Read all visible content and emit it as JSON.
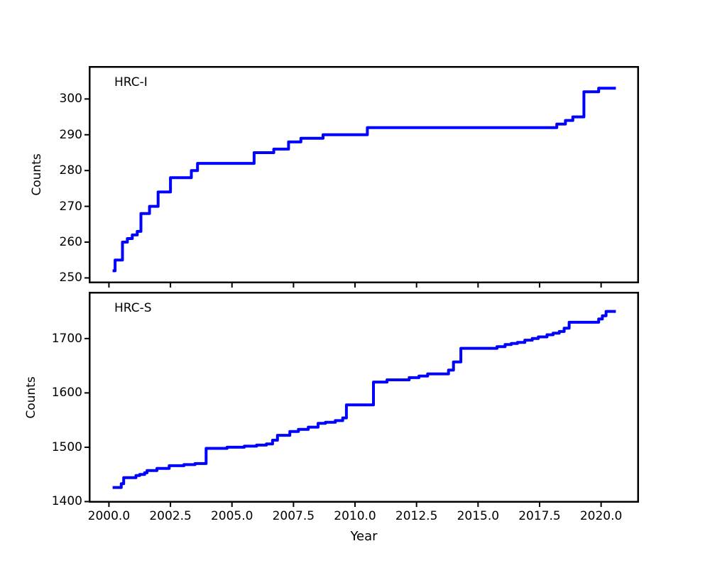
{
  "figure": {
    "background": "#ffffff",
    "axis_color": "#000000",
    "line_color": "#0000ff",
    "x_axis": {
      "label": "Year",
      "tick_labels": [
        "2000.0",
        "2002.5",
        "2005.0",
        "2007.5",
        "2010.0",
        "2012.5",
        "2015.0",
        "2017.5",
        "2020.0"
      ],
      "tick_values": [
        2000,
        2002.5,
        2005,
        2007.5,
        2010,
        2012.5,
        2015,
        2017.5,
        2020
      ]
    },
    "panels": [
      {
        "annotation": "HRC-I",
        "y_label": "Counts",
        "y_tick_labels": [
          "250",
          "260",
          "270",
          "280",
          "290",
          "300"
        ],
        "y_tick_values": [
          250,
          260,
          270,
          280,
          290,
          300
        ]
      },
      {
        "annotation": "HRC-S",
        "y_label": "Counts",
        "y_tick_labels": [
          "1400",
          "1500",
          "1600",
          "1700"
        ],
        "y_tick_values": [
          1400,
          1500,
          1600,
          1700
        ]
      }
    ]
  },
  "chart_data": [
    {
      "type": "line",
      "drawstyle": "steps-post",
      "title": "HRC-I",
      "xlabel": "Year",
      "ylabel": "Counts",
      "legend": "none",
      "grid": false,
      "line_color": "#0000ff",
      "xlim": [
        1999.18,
        2021.54
      ],
      "ylim": [
        248.5,
        309.2
      ],
      "x": [
        2000.15,
        2000.25,
        2000.55,
        2000.75,
        2000.95,
        2001.15,
        2001.3,
        2001.65,
        2002.0,
        2002.5,
        2003.35,
        2003.6,
        2005.9,
        2006.7,
        2007.3,
        2007.8,
        2008.7,
        2010.5,
        2018.2,
        2018.55,
        2018.85,
        2019.3,
        2019.9,
        2020.6
      ],
      "y": [
        252,
        255,
        260,
        261,
        262,
        263,
        268,
        270,
        274,
        278,
        280,
        282,
        285,
        286,
        288,
        289,
        290,
        292,
        293,
        294,
        295,
        302,
        303,
        303
      ]
    },
    {
      "type": "line",
      "drawstyle": "steps-post",
      "title": "HRC-S",
      "xlabel": "Year",
      "ylabel": "Counts",
      "legend": "none",
      "grid": false,
      "line_color": "#0000ff",
      "xlim": [
        1999.18,
        2021.54
      ],
      "ylim": [
        1398,
        1786
      ],
      "x": [
        2000.15,
        2000.5,
        2000.6,
        2001.1,
        2001.25,
        2001.45,
        2001.55,
        2001.95,
        2002.45,
        2003.05,
        2003.5,
        2003.95,
        2004.8,
        2005.5,
        2006.0,
        2006.4,
        2006.65,
        2006.85,
        2007.35,
        2007.7,
        2008.1,
        2008.5,
        2008.8,
        2009.2,
        2009.5,
        2009.65,
        2010.75,
        2011.3,
        2012.2,
        2012.6,
        2012.95,
        2013.8,
        2014.0,
        2014.3,
        2015.77,
        2016.1,
        2016.35,
        2016.6,
        2016.9,
        2017.2,
        2017.45,
        2017.8,
        2018.05,
        2018.3,
        2018.5,
        2018.7,
        2019.9,
        2020.05,
        2020.2,
        2020.6
      ],
      "y": [
        1426,
        1433,
        1444,
        1448,
        1450,
        1453,
        1457,
        1461,
        1466,
        1468,
        1470,
        1498,
        1500,
        1502,
        1504,
        1506,
        1513,
        1522,
        1529,
        1533,
        1537,
        1544,
        1546,
        1549,
        1554,
        1578,
        1620,
        1624,
        1628,
        1631,
        1635,
        1642,
        1657,
        1682,
        1685,
        1689,
        1691,
        1693,
        1697,
        1700,
        1703,
        1707,
        1710,
        1713,
        1719,
        1730,
        1736,
        1742,
        1750,
        1750
      ]
    }
  ]
}
